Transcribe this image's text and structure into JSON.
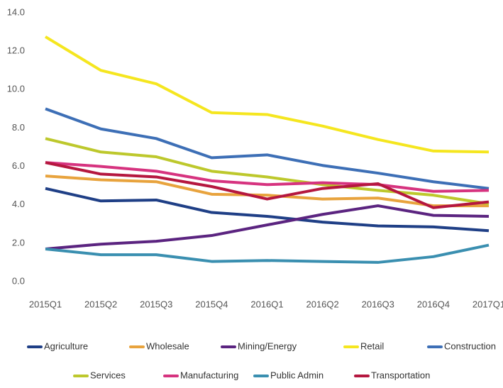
{
  "chart_data": {
    "type": "line",
    "categories": [
      "2015Q1",
      "2015Q2",
      "2015Q3",
      "2015Q4",
      "2016Q1",
      "2016Q2",
      "2016Q3",
      "2016Q4",
      "2017Q1"
    ],
    "ylim": [
      0,
      14
    ],
    "yticks": [
      {
        "value": 0,
        "label": "0.0"
      },
      {
        "value": 2,
        "label": "2.0"
      },
      {
        "value": 4,
        "label": "4.0"
      },
      {
        "value": 6,
        "label": "6.0"
      },
      {
        "value": 8,
        "label": "8.0"
      },
      {
        "value": 10,
        "label": "10.0"
      },
      {
        "value": 12,
        "label": "12.0"
      },
      {
        "value": 14,
        "label": "14.0"
      }
    ],
    "grid": false,
    "series": [
      {
        "name": "Agriculture",
        "color": "#1f3f86",
        "values": [
          4.85,
          4.2,
          4.25,
          3.6,
          3.4,
          3.1,
          2.9,
          2.85,
          2.65
        ]
      },
      {
        "name": "Wholesale",
        "color": "#e8a33d",
        "values": [
          5.5,
          5.3,
          5.2,
          4.55,
          4.5,
          4.3,
          4.35,
          3.95,
          3.95
        ]
      },
      {
        "name": "Mining/Energy",
        "color": "#5b2480",
        "values": [
          1.7,
          1.95,
          2.1,
          2.4,
          2.95,
          3.5,
          3.95,
          3.45,
          3.4
        ]
      },
      {
        "name": "Retail",
        "color": "#f5e61f",
        "values": [
          12.75,
          11.0,
          10.3,
          8.8,
          8.7,
          8.1,
          7.4,
          6.8,
          6.75
        ]
      },
      {
        "name": "Construction",
        "color": "#3d6fb6",
        "values": [
          9.0,
          7.95,
          7.45,
          6.45,
          6.6,
          6.05,
          5.65,
          5.2,
          4.85
        ]
      },
      {
        "name": "Services",
        "color": "#bdc82c",
        "values": [
          7.45,
          6.75,
          6.5,
          5.75,
          5.45,
          5.05,
          4.75,
          4.5,
          4.05
        ]
      },
      {
        "name": "Manufacturing",
        "color": "#d6337f",
        "values": [
          6.2,
          6.0,
          5.75,
          5.25,
          5.05,
          5.15,
          5.05,
          4.7,
          4.75
        ]
      },
      {
        "name": "Public Admin",
        "color": "#3a8fb0",
        "values": [
          1.7,
          1.4,
          1.4,
          1.05,
          1.1,
          1.05,
          1.0,
          1.3,
          1.9
        ]
      },
      {
        "name": "Transportation",
        "color": "#b5173f",
        "values": [
          6.2,
          5.6,
          5.45,
          4.95,
          4.3,
          4.85,
          5.1,
          3.85,
          4.15
        ]
      }
    ]
  }
}
